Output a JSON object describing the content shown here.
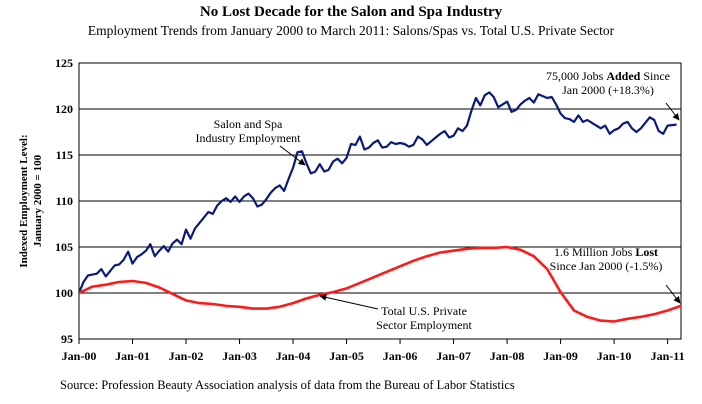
{
  "title": "No Lost Decade for the Salon and Spa Industry",
  "subtitle": "Employment Trends from January 2000 to March 2011: Salons/Spas vs. Total U.S. Private Sector",
  "source": "Source: Profession Beauty Association analysis of data from the Bureau of Labor Statistics",
  "colors": {
    "salon": "#0a1a7a",
    "private": "#ff1a1a",
    "grid": "#000000"
  },
  "chart_data": {
    "type": "line",
    "ylabel_lines": [
      "Indexed Employment Level:",
      "January 2000 = 100"
    ],
    "ylim": [
      95,
      125
    ],
    "yticks": [
      95,
      100,
      105,
      110,
      115,
      120,
      125
    ],
    "xlim": [
      0,
      135
    ],
    "xticks": [
      {
        "label": "Jan-00",
        "x": 0
      },
      {
        "label": "Jan-01",
        "x": 12
      },
      {
        "label": "Jan-02",
        "x": 24
      },
      {
        "label": "Jan-03",
        "x": 36
      },
      {
        "label": "Jan-04",
        "x": 48
      },
      {
        "label": "Jan-05",
        "x": 60
      },
      {
        "label": "Jan-06",
        "x": 72
      },
      {
        "label": "Jan-07",
        "x": 84
      },
      {
        "label": "Jan-08",
        "x": 96
      },
      {
        "label": "Jan-09",
        "x": 108
      },
      {
        "label": "Jan-10",
        "x": 120
      },
      {
        "label": "Jan-11",
        "x": 132
      }
    ],
    "grid": "horizontal",
    "series": [
      {
        "name": "Salon and Spa Industry Employment",
        "key": "salon",
        "anchors": [
          [
            0,
            100
          ],
          [
            1,
            101.2
          ],
          [
            2,
            101.9
          ],
          [
            3,
            102
          ],
          [
            4,
            102.1
          ],
          [
            5,
            102.6
          ],
          [
            6,
            101.8
          ],
          [
            7,
            102.4
          ],
          [
            8,
            103
          ],
          [
            9,
            103.1
          ],
          [
            10,
            103.6
          ],
          [
            11,
            104.5
          ],
          [
            12,
            103.2
          ],
          [
            13,
            103.9
          ],
          [
            14,
            104.2
          ],
          [
            15,
            104.6
          ],
          [
            16,
            105.3
          ],
          [
            17,
            104
          ],
          [
            18,
            104.6
          ],
          [
            19,
            105.1
          ],
          [
            20,
            104.5
          ],
          [
            21,
            105.4
          ],
          [
            22,
            105.8
          ],
          [
            23,
            105.3
          ],
          [
            24,
            106.9
          ],
          [
            25,
            105.9
          ],
          [
            26,
            107
          ],
          [
            27,
            107.6
          ],
          [
            28,
            108.2
          ],
          [
            29,
            108.8
          ],
          [
            30,
            108.6
          ],
          [
            31,
            109.5
          ],
          [
            32,
            110
          ],
          [
            33,
            110.3
          ],
          [
            34,
            109.9
          ],
          [
            35,
            110.5
          ],
          [
            36,
            109.9
          ],
          [
            37,
            110.5
          ],
          [
            38,
            110.8
          ],
          [
            39,
            110.3
          ],
          [
            40,
            109.4
          ],
          [
            41,
            109.6
          ],
          [
            42,
            110.2
          ],
          [
            43,
            110.9
          ],
          [
            44,
            111.4
          ],
          [
            45,
            111.7
          ],
          [
            46,
            111.1
          ],
          [
            47,
            112.4
          ],
          [
            48,
            113.6
          ],
          [
            49,
            115.3
          ],
          [
            50,
            115.4
          ],
          [
            51,
            114.1
          ],
          [
            52,
            113
          ],
          [
            53,
            113.2
          ],
          [
            54,
            114
          ],
          [
            55,
            113.2
          ],
          [
            56,
            113.4
          ],
          [
            57,
            114.3
          ],
          [
            58,
            114.6
          ],
          [
            59,
            114.1
          ],
          [
            60,
            114.7
          ],
          [
            61,
            116.2
          ],
          [
            62,
            116.1
          ],
          [
            63,
            117
          ],
          [
            64,
            115.6
          ],
          [
            65,
            115.8
          ],
          [
            66,
            116.3
          ],
          [
            67,
            116.6
          ],
          [
            68,
            115.8
          ],
          [
            69,
            115.9
          ],
          [
            70,
            116.4
          ],
          [
            71,
            116.2
          ],
          [
            72,
            116.3
          ],
          [
            73,
            116.2
          ],
          [
            74,
            115.9
          ],
          [
            75,
            116.1
          ],
          [
            76,
            117
          ],
          [
            77,
            116.7
          ],
          [
            78,
            116.1
          ],
          [
            79,
            116.5
          ],
          [
            80,
            116.9
          ],
          [
            81,
            117.3
          ],
          [
            82,
            117.6
          ],
          [
            83,
            116.9
          ],
          [
            84,
            117.1
          ],
          [
            85,
            117.9
          ],
          [
            86,
            117.6
          ],
          [
            87,
            118.2
          ],
          [
            88,
            119.8
          ],
          [
            89,
            121.2
          ],
          [
            90,
            120.4
          ],
          [
            91,
            121.5
          ],
          [
            92,
            121.8
          ],
          [
            93,
            121.3
          ],
          [
            94,
            120.2
          ],
          [
            95,
            120.5
          ],
          [
            96,
            120.8
          ],
          [
            97,
            119.7
          ],
          [
            98,
            119.9
          ],
          [
            99,
            120.5
          ],
          [
            100,
            120.9
          ],
          [
            101,
            121.2
          ],
          [
            102,
            120.7
          ],
          [
            103,
            121.6
          ],
          [
            104,
            121.4
          ],
          [
            105,
            121.2
          ],
          [
            106,
            121.3
          ],
          [
            107,
            120.5
          ],
          [
            108,
            119.5
          ],
          [
            109,
            119
          ],
          [
            110,
            118.9
          ],
          [
            111,
            118.6
          ],
          [
            112,
            119.3
          ],
          [
            113,
            118.6
          ],
          [
            114,
            118.8
          ],
          [
            115,
            118.5
          ],
          [
            116,
            118.2
          ],
          [
            117,
            117.9
          ],
          [
            118,
            118.2
          ],
          [
            119,
            117.3
          ],
          [
            120,
            117.7
          ],
          [
            121,
            117.9
          ],
          [
            122,
            118.4
          ],
          [
            123,
            118.6
          ],
          [
            124,
            117.9
          ],
          [
            125,
            117.5
          ],
          [
            126,
            117.9
          ],
          [
            127,
            118.5
          ],
          [
            128,
            119.1
          ],
          [
            129,
            118.8
          ],
          [
            130,
            117.6
          ],
          [
            131,
            117.3
          ],
          [
            132,
            118.2
          ],
          [
            134,
            118.3
          ]
        ]
      },
      {
        "name": "Total U.S. Private Sector Employment",
        "key": "private",
        "anchors": [
          [
            0,
            100
          ],
          [
            3,
            100.7
          ],
          [
            6,
            100.9
          ],
          [
            9,
            101.2
          ],
          [
            12,
            101.3
          ],
          [
            15,
            101.1
          ],
          [
            18,
            100.6
          ],
          [
            21,
            99.9
          ],
          [
            24,
            99.2
          ],
          [
            27,
            98.9
          ],
          [
            30,
            98.8
          ],
          [
            33,
            98.6
          ],
          [
            36,
            98.5
          ],
          [
            39,
            98.3
          ],
          [
            42,
            98.3
          ],
          [
            45,
            98.5
          ],
          [
            48,
            98.9
          ],
          [
            51,
            99.4
          ],
          [
            54,
            99.8
          ],
          [
            57,
            100.1
          ],
          [
            60,
            100.5
          ],
          [
            63,
            101.1
          ],
          [
            66,
            101.7
          ],
          [
            69,
            102.3
          ],
          [
            72,
            102.9
          ],
          [
            75,
            103.5
          ],
          [
            78,
            104
          ],
          [
            81,
            104.4
          ],
          [
            84,
            104.6
          ],
          [
            87,
            104.8
          ],
          [
            90,
            104.9
          ],
          [
            93,
            104.9
          ],
          [
            96,
            105
          ],
          [
            99,
            104.7
          ],
          [
            102,
            104
          ],
          [
            105,
            102.6
          ],
          [
            108,
            100.1
          ],
          [
            111,
            98.1
          ],
          [
            114,
            97.4
          ],
          [
            117,
            97
          ],
          [
            120,
            96.9
          ],
          [
            123,
            97.2
          ],
          [
            126,
            97.4
          ],
          [
            129,
            97.7
          ],
          [
            132,
            98.1
          ],
          [
            135,
            98.6
          ]
        ]
      }
    ],
    "annotations": [
      {
        "key": "salon_label",
        "lines": [
          "Salon and Spa",
          "Industry Employment"
        ]
      },
      {
        "key": "private_label",
        "lines": [
          "Total U.S. Private",
          "Sector Employment"
        ]
      },
      {
        "key": "gain_note",
        "lines": [
          "75,000 Jobs Added Since",
          "Jan 2000 (+18.3%)"
        ],
        "bold_word": "Added"
      },
      {
        "key": "loss_note",
        "lines": [
          "1.6 Million Jobs Lost",
          "Since Jan 2000 (-1.5%)"
        ],
        "bold_word": "Lost"
      }
    ]
  }
}
